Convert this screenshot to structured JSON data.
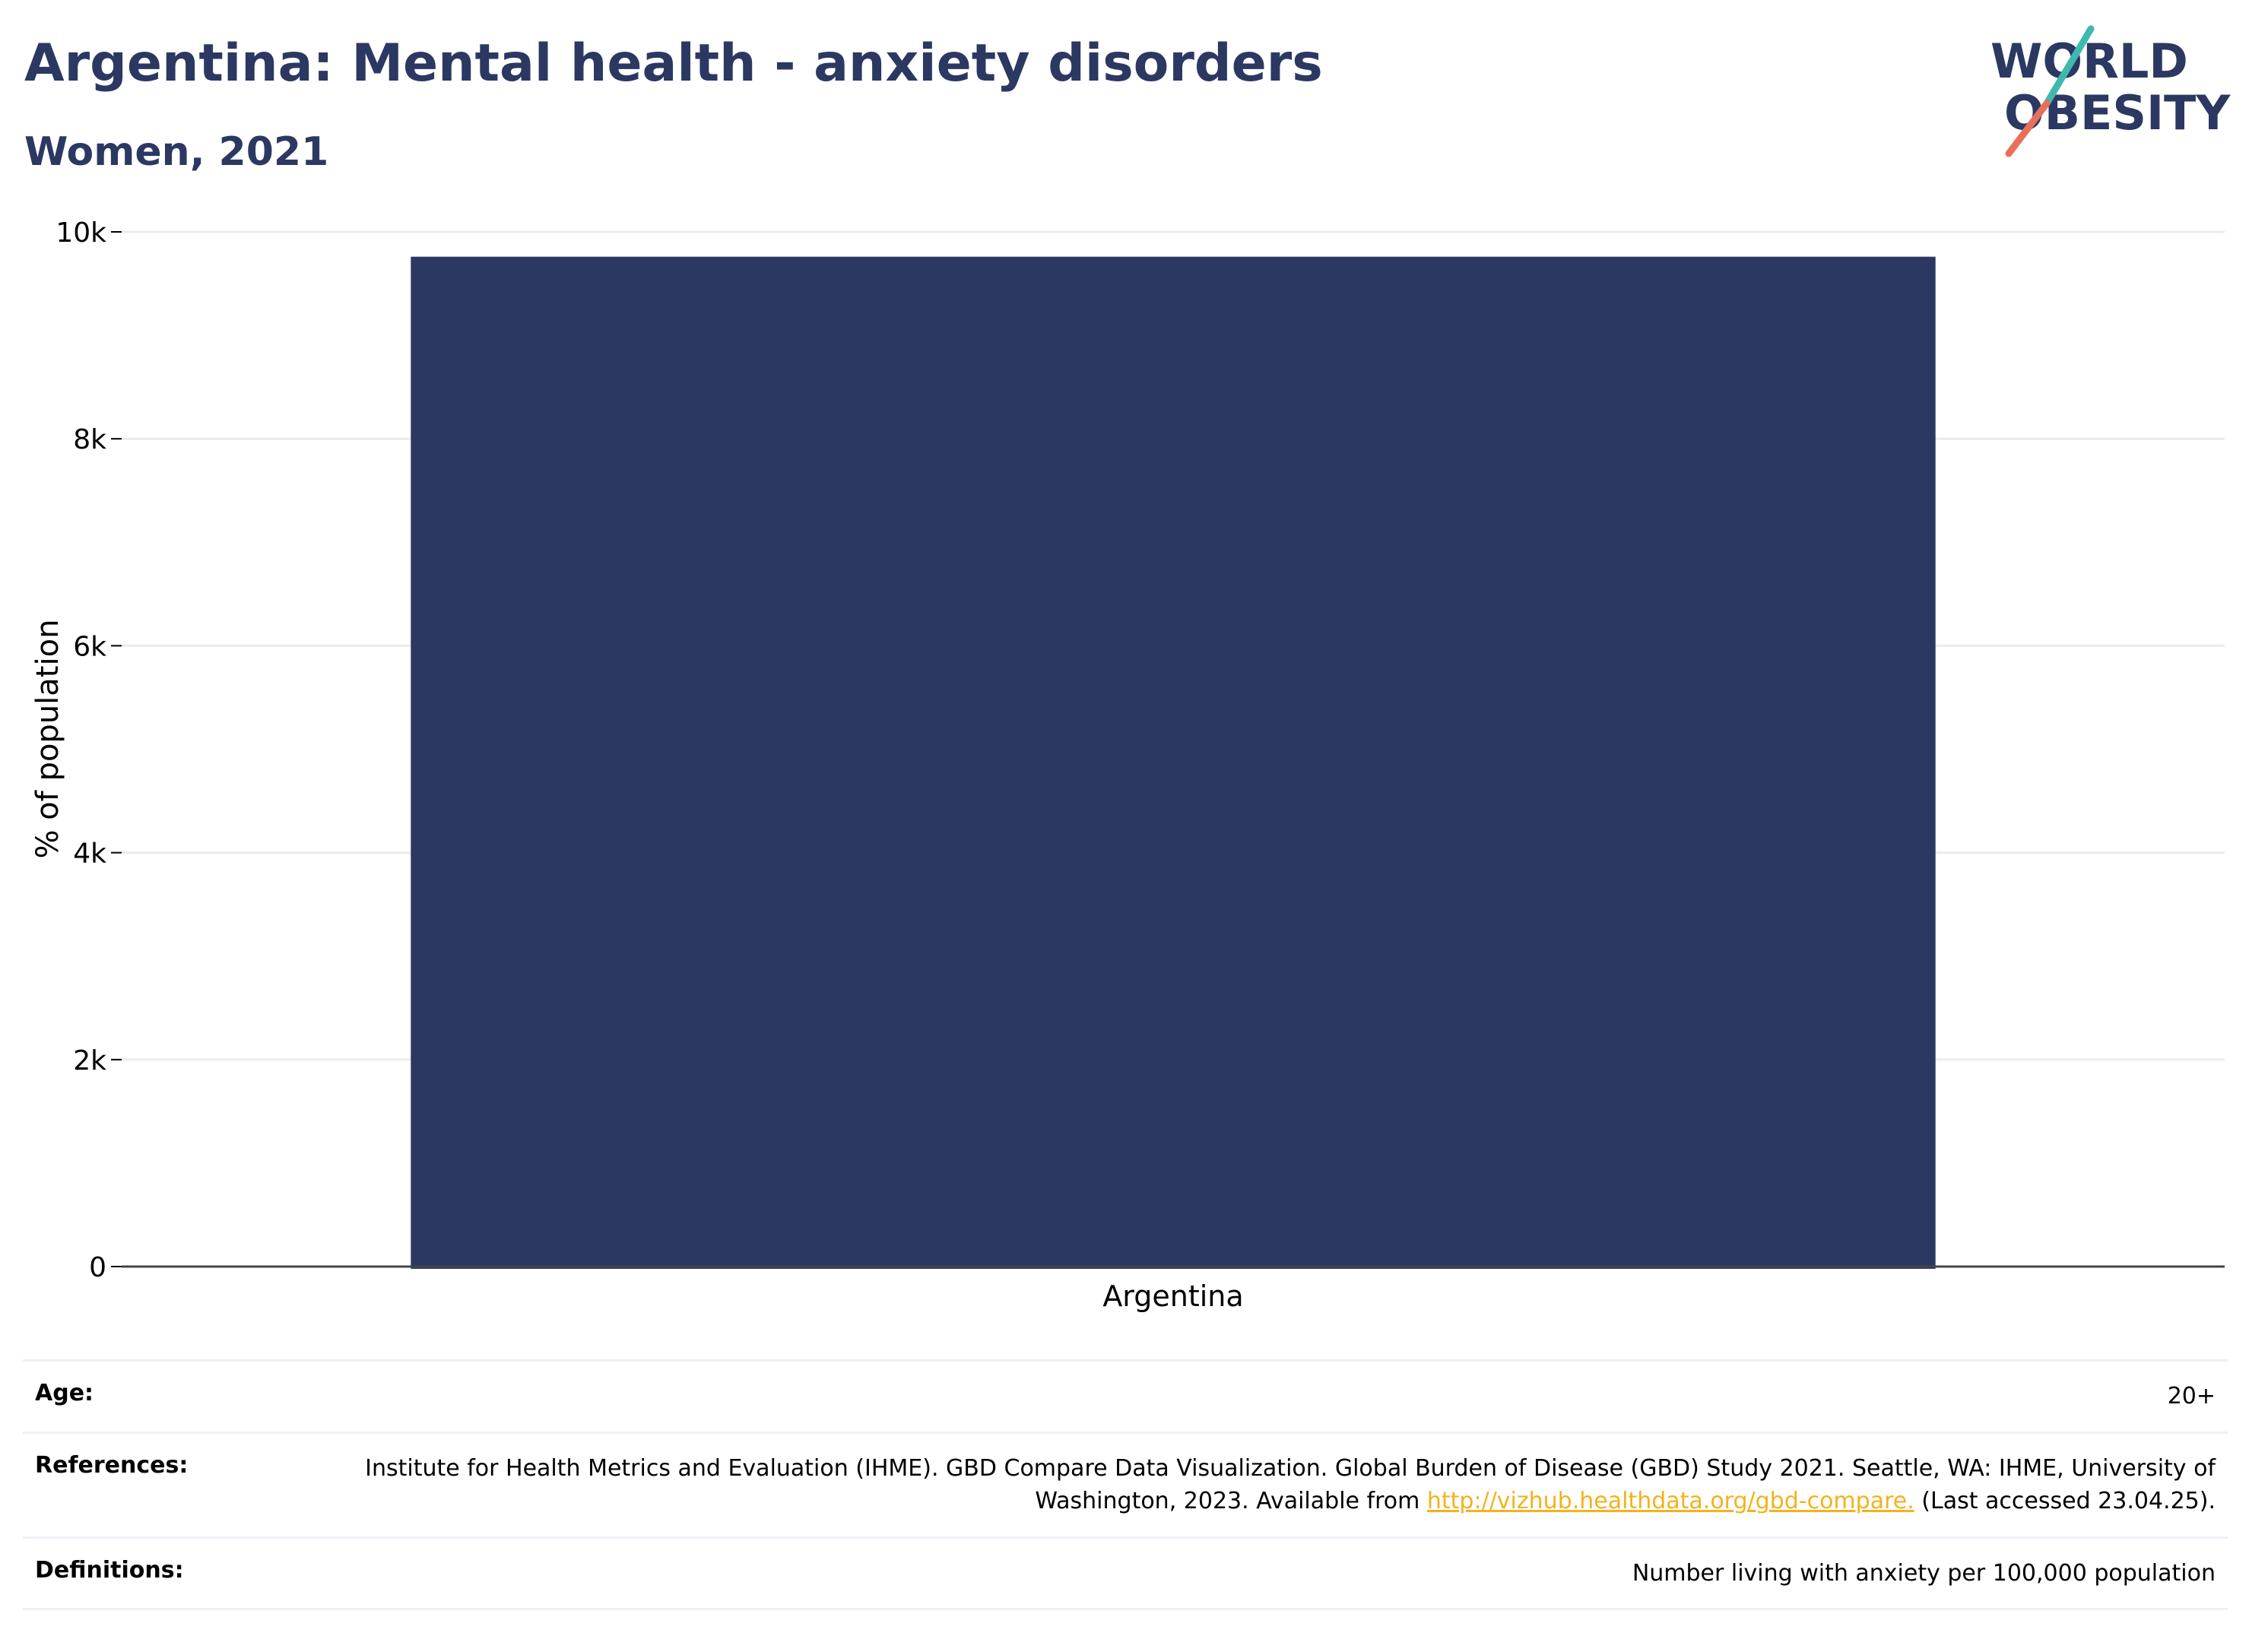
{
  "header": {
    "title": "Argentina: Mental health - anxiety disorders",
    "subtitle": "Women, 2021"
  },
  "logo": {
    "line1": "WORLD",
    "line2": "OBESITY",
    "accent_teal": "#3fb8b0",
    "accent_coral": "#e8705a"
  },
  "chart_data": {
    "type": "bar",
    "title": "Argentina: Mental health - anxiety disorders",
    "subtitle": "Women, 2021",
    "categories": [
      "Argentina"
    ],
    "values": [
      9760
    ],
    "xlabel": "",
    "ylabel": "% of population",
    "ylim": [
      0,
      10000
    ],
    "yticks": [
      0,
      2000,
      4000,
      6000,
      8000,
      10000
    ],
    "ytick_labels": [
      "0",
      "2k",
      "4k",
      "6k",
      "8k",
      "10k"
    ],
    "grid": true,
    "bar_color": "#2b3862"
  },
  "meta": {
    "age_label": "Age:",
    "age_value": "20+",
    "references_label": "References:",
    "references_text_before": "Institute for Health Metrics and Evaluation (IHME). GBD Compare Data Visualization. Global Burden of Disease (GBD) Study 2021. Seattle, WA: IHME, University of Washington, 2023. Available from",
    "references_link": "http://vizhub.healthdata.org/gbd-compare.",
    "references_text_after": "(Last accessed 23.04.25).",
    "definitions_label": "Definitions:",
    "definitions_value": "Number living with anxiety per 100,000 population"
  }
}
